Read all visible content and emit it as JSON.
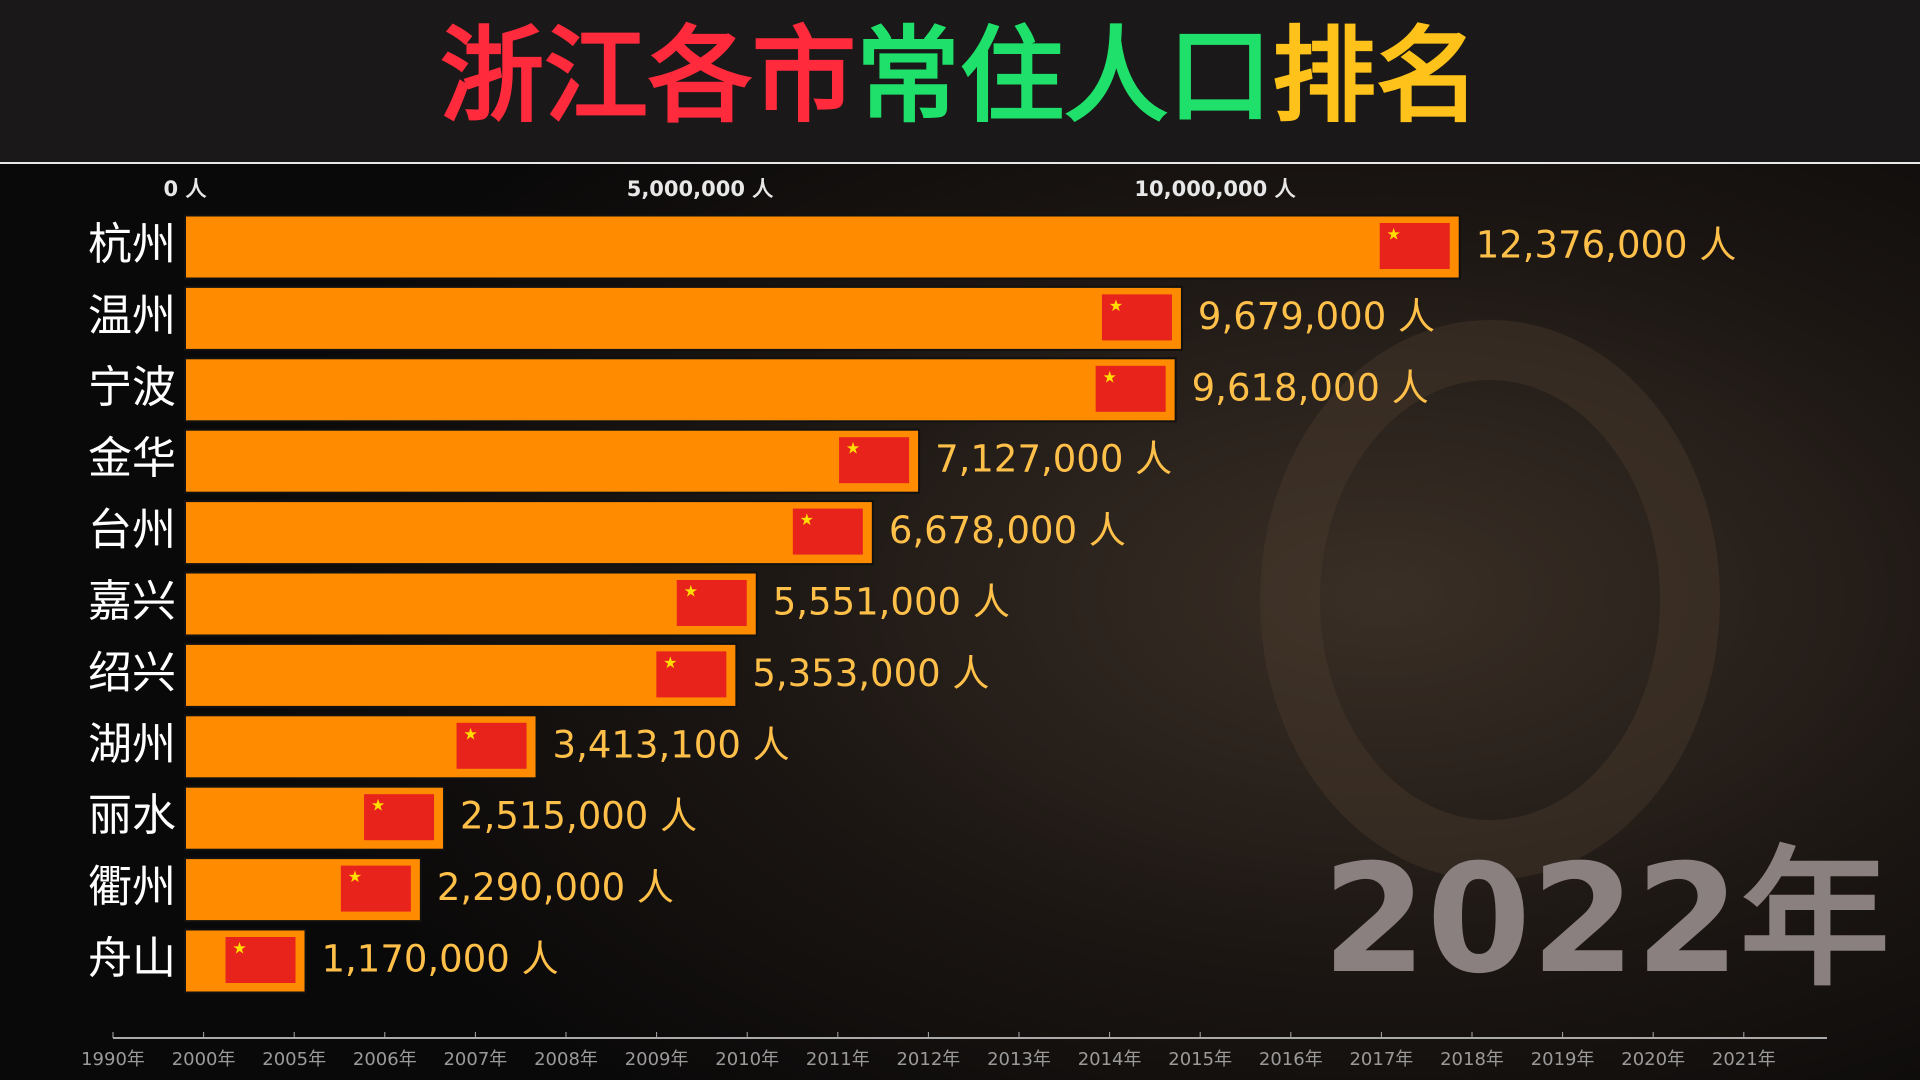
{
  "chart_data": {
    "type": "bar",
    "orientation": "horizontal",
    "title_parts": [
      {
        "text": "浙江各市",
        "color": "#ff2a3c"
      },
      {
        "text": "常住人口",
        "color": "#1fe06a"
      },
      {
        "text": "排名",
        "color": "#ffc21a"
      }
    ],
    "categories": [
      "杭州",
      "温州",
      "宁波",
      "金华",
      "台州",
      "嘉兴",
      "绍兴",
      "湖州",
      "丽水",
      "衢州",
      "舟山"
    ],
    "values": [
      12376000,
      9679000,
      9618000,
      7127000,
      6678000,
      5551000,
      5353000,
      3413100,
      2515000,
      2290000,
      1170000
    ],
    "value_labels": [
      "12,376,000 人",
      "9,679,000 人",
      "9,618,000 人",
      "7,127,000 人",
      "6,678,000 人",
      "5,551,000 人",
      "5,353,000 人",
      "3,413,100 人",
      "2,515,000 人",
      "2,290,000 人",
      "1,170,000 人"
    ],
    "color": "#ff8c00",
    "xlim": [
      0,
      16000000
    ],
    "xticks": [
      {
        "value": 0,
        "label": "0 人"
      },
      {
        "value": 5000000,
        "label": "5,000,000 人"
      },
      {
        "value": 10000000,
        "label": "10,000,000 人"
      }
    ],
    "year": "2022年",
    "timeline": [
      "1990年",
      "2000年",
      "2005年",
      "2006年",
      "2007年",
      "2008年",
      "2009年",
      "2010年",
      "2011年",
      "2012年",
      "2013年",
      "2014年",
      "2015年",
      "2016年",
      "2017年",
      "2018年",
      "2019年",
      "2020年",
      "2021年"
    ]
  }
}
